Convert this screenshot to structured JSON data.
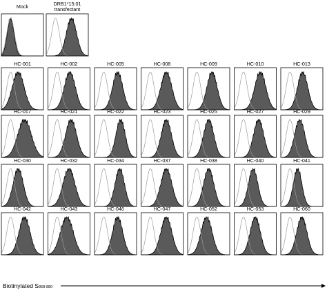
{
  "chart_data": {
    "type": "histogram-overlay-grid",
    "xlabel": "Biotinylated S",
    "xlabel_subscript": "868-880",
    "controls": [
      {
        "label": "Mock",
        "stained_peak": 0.22,
        "stained_width": 0.08
      },
      {
        "label": "DRB1*15:01 transfectant",
        "stained_peak": 0.6,
        "stained_width": 0.12
      }
    ],
    "samples": [
      {
        "label": "HC-001",
        "stained_peak": 0.4,
        "stained_width": 0.14
      },
      {
        "label": "HC-002",
        "stained_peak": 0.52,
        "stained_width": 0.13
      },
      {
        "label": "HC-005",
        "stained_peak": 0.55,
        "stained_width": 0.12
      },
      {
        "label": "HC-008",
        "stained_peak": 0.6,
        "stained_width": 0.13
      },
      {
        "label": "HC-009",
        "stained_peak": 0.58,
        "stained_width": 0.12
      },
      {
        "label": "HC-010",
        "stained_peak": 0.62,
        "stained_width": 0.13
      },
      {
        "label": "HC-013",
        "stained_peak": 0.52,
        "stained_width": 0.12
      },
      {
        "label": "HC-017",
        "stained_peak": 0.55,
        "stained_width": 0.16
      },
      {
        "label": "HC-021",
        "stained_peak": 0.55,
        "stained_width": 0.13
      },
      {
        "label": "HC-022",
        "stained_peak": 0.62,
        "stained_width": 0.11
      },
      {
        "label": "HC-023",
        "stained_peak": 0.6,
        "stained_width": 0.12
      },
      {
        "label": "HC-025",
        "stained_peak": 0.5,
        "stained_width": 0.12
      },
      {
        "label": "HC-027",
        "stained_peak": 0.58,
        "stained_width": 0.12
      },
      {
        "label": "HC-029",
        "stained_peak": 0.45,
        "stained_width": 0.12
      },
      {
        "label": "HC-030",
        "stained_peak": 0.4,
        "stained_width": 0.12
      },
      {
        "label": "HC-032",
        "stained_peak": 0.5,
        "stained_width": 0.14
      },
      {
        "label": "HC-034",
        "stained_peak": 0.6,
        "stained_width": 0.11
      },
      {
        "label": "HC-037",
        "stained_peak": 0.6,
        "stained_width": 0.13
      },
      {
        "label": "HC-038",
        "stained_peak": 0.5,
        "stained_width": 0.12
      },
      {
        "label": "HC-040",
        "stained_peak": 0.45,
        "stained_width": 0.11
      },
      {
        "label": "HC-041",
        "stained_peak": 0.4,
        "stained_width": 0.1
      },
      {
        "label": "HC-042",
        "stained_peak": 0.55,
        "stained_width": 0.13
      },
      {
        "label": "HC-043",
        "stained_peak": 0.45,
        "stained_width": 0.15
      },
      {
        "label": "HC-046",
        "stained_peak": 0.55,
        "stained_width": 0.12
      },
      {
        "label": "HC-047",
        "stained_peak": 0.6,
        "stained_width": 0.13
      },
      {
        "label": "HC-052",
        "stained_peak": 0.45,
        "stained_width": 0.13
      },
      {
        "label": "HC-053",
        "stained_peak": 0.5,
        "stained_width": 0.12
      },
      {
        "label": "HC-060",
        "stained_peak": 0.5,
        "stained_width": 0.12
      }
    ],
    "reference_peak": 0.22,
    "reference_width": 0.09,
    "colors": {
      "stained_fill": "#5a5a5a",
      "stained_stroke": "#000000",
      "reference_stroke": "#9a9a9a"
    }
  }
}
